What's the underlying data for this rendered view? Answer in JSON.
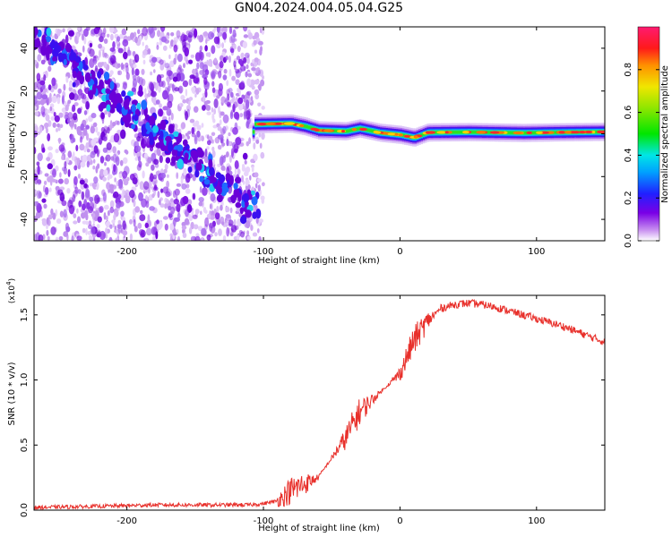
{
  "title": "GN04.2024.004.05.04.G25",
  "chart_data": [
    {
      "type": "heatmap",
      "xlabel": "Height of straight line (km)",
      "ylabel": "Frequency (Hz)",
      "xlim": [
        -268,
        150
      ],
      "ylim": [
        -50,
        50
      ],
      "xticks": [
        -200,
        -100,
        0,
        100
      ],
      "yticks": [
        -40,
        -20,
        0,
        20,
        40
      ],
      "colorbar": {
        "label": "Normalized spectral amplitude",
        "ticks": [
          "0.0",
          "0.2",
          "0.4",
          "0.6",
          "0.8"
        ],
        "range": [
          0,
          1
        ],
        "colormap": "rainbow-white-violet-red"
      },
      "features": {
        "diagonal_band": {
          "x_start": -268,
          "y_start": 46,
          "x_end": -105,
          "y_end": -36
        },
        "horizontal_band_points": [
          {
            "x": -107,
            "y": 4.5
          },
          {
            "x": -80,
            "y": 4.8
          },
          {
            "x": -70,
            "y": 3.5
          },
          {
            "x": -60,
            "y": 1.6
          },
          {
            "x": -40,
            "y": 1.2
          },
          {
            "x": -30,
            "y": 2.5
          },
          {
            "x": -15,
            "y": 0.5
          },
          {
            "x": 0,
            "y": -0.5
          },
          {
            "x": 10,
            "y": -1.8
          },
          {
            "x": 20,
            "y": 0.6
          },
          {
            "x": 50,
            "y": 0.8
          },
          {
            "x": 90,
            "y": 0.4
          },
          {
            "x": 120,
            "y": 0.7
          },
          {
            "x": 150,
            "y": 0.9
          }
        ]
      }
    },
    {
      "type": "line",
      "xlabel": "Height of straight line (km)",
      "ylabel": "SNR (10 * v/v)",
      "scale_label": "(x10",
      "scale_exp": "4",
      "scale_close": ")",
      "xlim": [
        -268,
        150
      ],
      "ylim": [
        0,
        1.65
      ],
      "xticks": [
        -200,
        -100,
        0,
        100
      ],
      "yticks": [
        "0.0",
        "0.5",
        "1.0",
        "1.5"
      ],
      "color": "#e8302b",
      "series": [
        {
          "x": [
            -268,
            -220,
            -180,
            -140,
            -110,
            -100,
            -90,
            -80,
            -70,
            -60,
            -50,
            -40,
            -30,
            -20,
            -10,
            0,
            10,
            20,
            30,
            40,
            50,
            60,
            70,
            80,
            90,
            100,
            110,
            120,
            130,
            140,
            150
          ],
          "values": [
            0.02,
            0.03,
            0.04,
            0.04,
            0.04,
            0.05,
            0.07,
            0.15,
            0.2,
            0.25,
            0.4,
            0.55,
            0.75,
            0.85,
            0.95,
            1.05,
            1.3,
            1.45,
            1.55,
            1.58,
            1.59,
            1.58,
            1.56,
            1.53,
            1.5,
            1.47,
            1.44,
            1.41,
            1.37,
            1.33,
            1.29
          ]
        }
      ]
    }
  ]
}
